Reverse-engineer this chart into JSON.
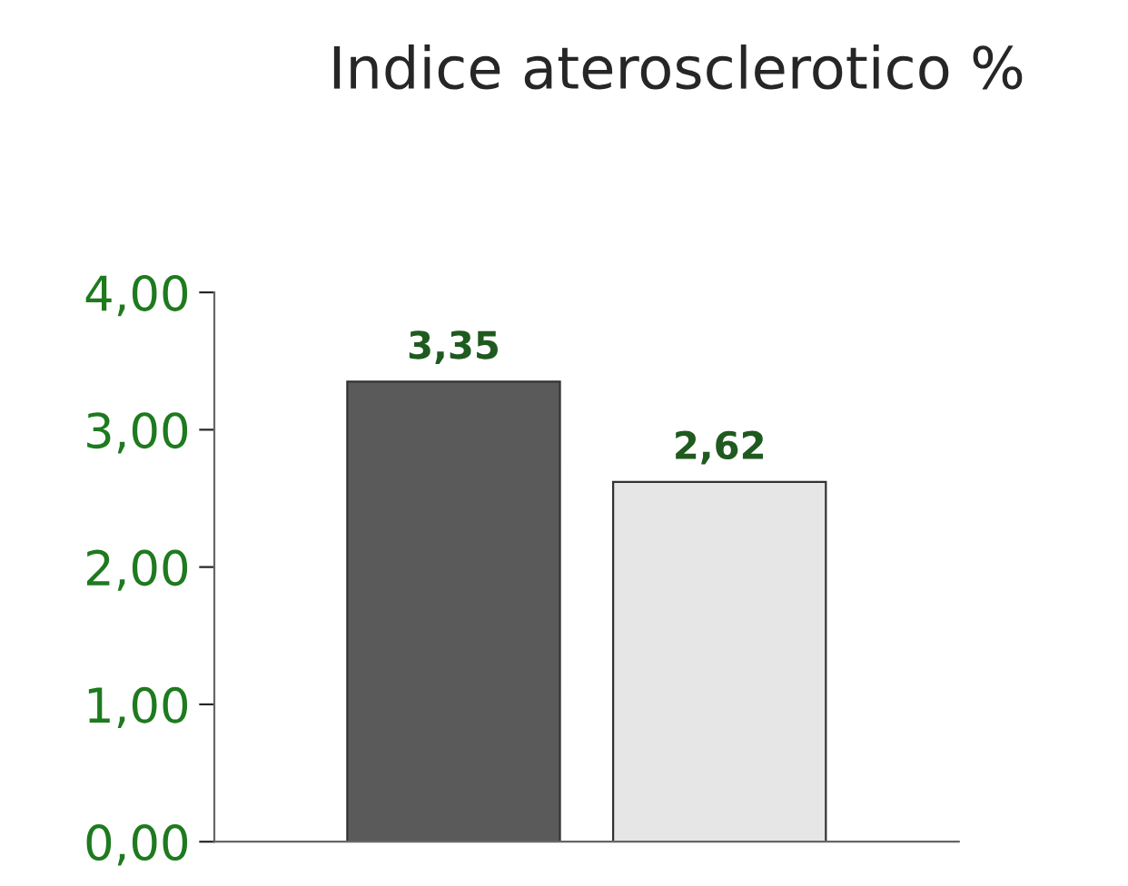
{
  "chart_data": {
    "type": "bar",
    "title": "Indice aterosclerotico %",
    "categories": [
      null,
      null
    ],
    "values": [
      3.35,
      2.62
    ],
    "colors": [
      "#5a5a5a",
      "#e6e6e6"
    ],
    "value_labels": [
      "3,35",
      "2,62"
    ],
    "ylim": [
      0,
      4
    ],
    "yticks": [
      {
        "value": 0,
        "label": "0,00"
      },
      {
        "value": 1,
        "label": "1,00"
      },
      {
        "value": 2,
        "label": "2,00"
      },
      {
        "value": 3,
        "label": "3,00"
      },
      {
        "value": 4,
        "label": "4,00"
      }
    ],
    "grid": false,
    "legend": false
  }
}
